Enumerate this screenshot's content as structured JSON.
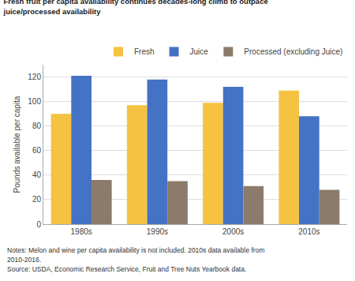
{
  "chart_data": {
    "type": "bar",
    "title": "Fresh fruit per capita availability continues decades-long climb to outpace\njuice/processed availability",
    "ylabel": "Pounds available per capita",
    "categories": [
      "1980s",
      "1990s",
      "2000s",
      "2010s"
    ],
    "series": [
      {
        "name": "Fresh",
        "color": "#F5C242",
        "values": [
          90,
          97,
          99,
          109
        ]
      },
      {
        "name": "Juice",
        "color": "#4472C4",
        "values": [
          121,
          118,
          112,
          88
        ]
      },
      {
        "name": "Processed (excluding Juice)",
        "color": "#8C7B6B",
        "values": [
          36,
          35,
          31,
          28
        ]
      }
    ],
    "ylim": [
      0,
      130
    ],
    "yticks": [
      0,
      20,
      40,
      60,
      80,
      100,
      120
    ],
    "grid": true,
    "legend": "upper right",
    "annotations": [
      "Notes: Melon and wine per capita availability is not included. 2010s data available from",
      "2010-2016.",
      "Source: USDA, Economic Research Service, Fruit and Tree Nuts Yearbook data."
    ]
  }
}
